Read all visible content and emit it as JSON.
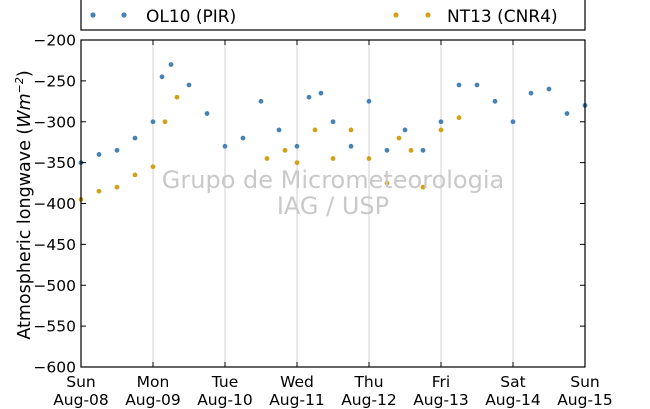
{
  "chart_data": {
    "type": "scatter",
    "ylabel_prefix": "Atmospheric longwave (",
    "ylabel_unit": "Wm",
    "ylabel_exp": "−2",
    "ylabel_suffix": ")",
    "ylim": [
      -600,
      -200
    ],
    "yticks": [
      -200,
      -250,
      -300,
      -350,
      -400,
      -450,
      -500,
      -550,
      -600
    ],
    "ytick_labels": [
      "−200",
      "−250",
      "−300",
      "−350",
      "−400",
      "−450",
      "−500",
      "−550",
      "−600"
    ],
    "xlim": [
      "2010-08-08",
      "2010-08-15"
    ],
    "xticks": [
      {
        "day": "Sun",
        "date": "Aug-08"
      },
      {
        "day": "Mon",
        "date": "Aug-09"
      },
      {
        "day": "Tue",
        "date": "Aug-10"
      },
      {
        "day": "Wed",
        "date": "Aug-11"
      },
      {
        "day": "Thu",
        "date": "Aug-12"
      },
      {
        "day": "Fri",
        "date": "Aug-13"
      },
      {
        "day": "Sat",
        "date": "Aug-14"
      },
      {
        "day": "Sun",
        "date": "Aug-15"
      }
    ],
    "grid": "vertical",
    "legend_position": "top",
    "watermark_line1": "Grupo de Micrometeorologia",
    "watermark_line2": "IAG / USP",
    "series": [
      {
        "name": "OL10 (PIR)",
        "color": "#4682b4",
        "x": [
          "2010-08-08 00:00",
          "2010-08-08 06:00",
          "2010-08-08 12:00",
          "2010-08-08 18:00",
          "2010-08-09 00:00",
          "2010-08-09 03:00",
          "2010-08-09 06:00",
          "2010-08-09 12:00",
          "2010-08-09 18:00",
          "2010-08-10 00:00",
          "2010-08-10 06:00",
          "2010-08-10 12:00",
          "2010-08-10 18:00",
          "2010-08-11 00:00",
          "2010-08-11 04:00",
          "2010-08-11 08:00",
          "2010-08-11 12:00",
          "2010-08-11 18:00",
          "2010-08-12 00:00",
          "2010-08-12 06:00",
          "2010-08-12 12:00",
          "2010-08-12 18:00",
          "2010-08-13 00:00",
          "2010-08-13 06:00",
          "2010-08-13 12:00",
          "2010-08-13 18:00",
          "2010-08-14 00:00",
          "2010-08-14 06:00",
          "2010-08-14 12:00",
          "2010-08-14 18:00",
          "2010-08-15 00:00"
        ],
        "y": [
          -350,
          -340,
          -335,
          -320,
          -300,
          -245,
          -230,
          -255,
          -290,
          -330,
          -320,
          -275,
          -310,
          -330,
          -270,
          -265,
          -300,
          -330,
          -275,
          -335,
          -310,
          -335,
          -300,
          -255,
          -255,
          -275,
          -300,
          -265,
          -260,
          -290,
          -280
        ]
      },
      {
        "name": "NT13 (CNR4)",
        "color": "#d4a017",
        "x": [
          "2010-08-08 00:00",
          "2010-08-08 06:00",
          "2010-08-08 12:00",
          "2010-08-08 18:00",
          "2010-08-09 00:00",
          "2010-08-09 04:00",
          "2010-08-09 08:00",
          "2010-08-10 14:00",
          "2010-08-10 20:00",
          "2010-08-11 00:00",
          "2010-08-11 06:00",
          "2010-08-11 12:00",
          "2010-08-11 18:00",
          "2010-08-12 00:00",
          "2010-08-12 06:00",
          "2010-08-12 10:00",
          "2010-08-12 14:00",
          "2010-08-12 18:00",
          "2010-08-13 00:00",
          "2010-08-13 06:00"
        ],
        "y": [
          -395,
          -385,
          -380,
          -365,
          -355,
          -300,
          -270,
          -345,
          -335,
          -350,
          -310,
          -345,
          -310,
          -345,
          -375,
          -320,
          -335,
          -380,
          -310,
          -295
        ]
      }
    ]
  }
}
